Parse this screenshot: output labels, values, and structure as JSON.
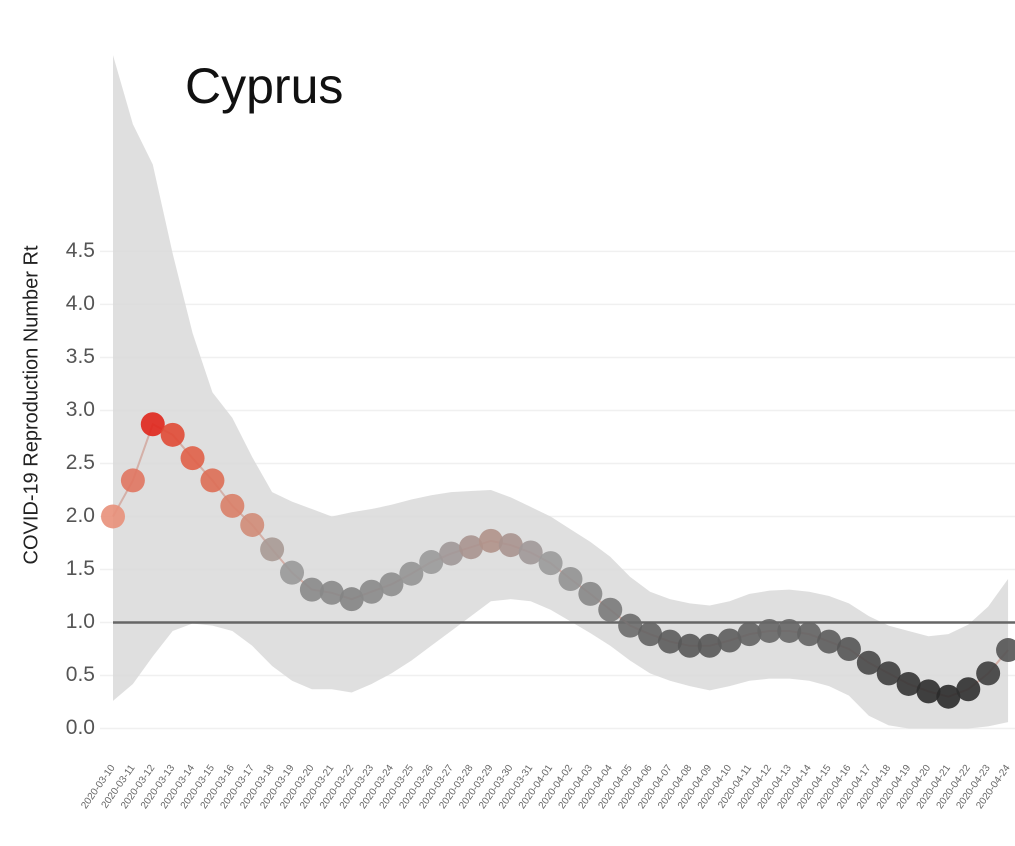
{
  "chart_data": {
    "type": "line",
    "title": "Cyprus",
    "ylabel": "COVID-19 Reproduction Number Rt",
    "categories": [
      "2020-03-10",
      "2020-03-11",
      "2020-03-12",
      "2020-03-13",
      "2020-03-14",
      "2020-03-15",
      "2020-03-16",
      "2020-03-17",
      "2020-03-18",
      "2020-03-19",
      "2020-03-20",
      "2020-03-21",
      "2020-03-22",
      "2020-03-23",
      "2020-03-24",
      "2020-03-25",
      "2020-03-26",
      "2020-03-27",
      "2020-03-28",
      "2020-03-29",
      "2020-03-30",
      "2020-03-31",
      "2020-04-01",
      "2020-04-02",
      "2020-04-03",
      "2020-04-04",
      "2020-04-05",
      "2020-04-06",
      "2020-04-07",
      "2020-04-08",
      "2020-04-09",
      "2020-04-10",
      "2020-04-11",
      "2020-04-12",
      "2020-04-13",
      "2020-04-14",
      "2020-04-15",
      "2020-04-16",
      "2020-04-17",
      "2020-04-18",
      "2020-04-19",
      "2020-04-20",
      "2020-04-21",
      "2020-04-22",
      "2020-04-23",
      "2020-04-24"
    ],
    "values": [
      2.0,
      2.34,
      2.87,
      2.77,
      2.55,
      2.34,
      2.1,
      1.92,
      1.69,
      1.47,
      1.31,
      1.28,
      1.22,
      1.29,
      1.36,
      1.46,
      1.57,
      1.65,
      1.71,
      1.77,
      1.73,
      1.66,
      1.56,
      1.41,
      1.27,
      1.12,
      0.97,
      0.89,
      0.82,
      0.78,
      0.78,
      0.83,
      0.89,
      0.92,
      0.92,
      0.89,
      0.82,
      0.75,
      0.62,
      0.52,
      0.42,
      0.35,
      0.3,
      0.37,
      0.52,
      0.74
    ],
    "colors": [
      "#e8907a",
      "#e07560",
      "#e0261c",
      "#e04a35",
      "#e06048",
      "#dd6e55",
      "#d98068",
      "#d08c78",
      "#a89a95",
      "#999999",
      "#8a8a8a",
      "#888888",
      "#848484",
      "#898989",
      "#8e8e8e",
      "#959595",
      "#9a9a9a",
      "#a09898",
      "#a8948f",
      "#b0928a",
      "#a8948f",
      "#a09898",
      "#9a9a9a",
      "#929292",
      "#878787",
      "#7a7a7a",
      "#6c6c6c",
      "#636363",
      "#5c5c5c",
      "#585858",
      "#585858",
      "#5d5d5d",
      "#636363",
      "#666666",
      "#666666",
      "#636363",
      "#5c5c5c",
      "#555555",
      "#484848",
      "#3e3e3e",
      "#343434",
      "#2e2e2e",
      "#2a2a2a",
      "#303030",
      "#3e3e3e",
      "#545454"
    ],
    "ci_upper": [
      6.35,
      5.7,
      5.32,
      4.48,
      3.73,
      3.17,
      2.93,
      2.56,
      2.23,
      2.14,
      2.07,
      2.0,
      2.04,
      2.07,
      2.11,
      2.16,
      2.2,
      2.23,
      2.24,
      2.25,
      2.18,
      2.09,
      2.0,
      1.88,
      1.76,
      1.62,
      1.43,
      1.29,
      1.22,
      1.18,
      1.16,
      1.2,
      1.27,
      1.3,
      1.31,
      1.29,
      1.25,
      1.18,
      1.06,
      0.97,
      0.92,
      0.87,
      0.89,
      0.98,
      1.15,
      1.41
    ],
    "ci_lower": [
      0.26,
      0.42,
      0.68,
      0.92,
      0.99,
      0.97,
      0.92,
      0.78,
      0.59,
      0.45,
      0.37,
      0.37,
      0.34,
      0.42,
      0.52,
      0.64,
      0.78,
      0.92,
      1.06,
      1.2,
      1.22,
      1.2,
      1.12,
      1.01,
      0.9,
      0.78,
      0.64,
      0.52,
      0.45,
      0.4,
      0.36,
      0.4,
      0.45,
      0.47,
      0.47,
      0.45,
      0.4,
      0.31,
      0.12,
      0.03,
      0.0,
      0.0,
      0.0,
      0.0,
      0.02,
      0.06
    ],
    "band_color": "#d9d9d9",
    "line_color": "#d4b0a8",
    "reference_line": 1.0,
    "reference_color": "#666666",
    "ylim": [
      -0.25,
      6.4
    ],
    "yticks": [
      {
        "value": 0,
        "label": "0.0"
      },
      0.5,
      {
        "value": 1,
        "label": "1.0"
      },
      1.5,
      {
        "value": 2,
        "label": "2.0"
      },
      2.5,
      {
        "value": 3,
        "label": "3.0"
      },
      3.5,
      {
        "value": 4,
        "label": "4.0"
      },
      4.5
    ],
    "grid": true
  }
}
